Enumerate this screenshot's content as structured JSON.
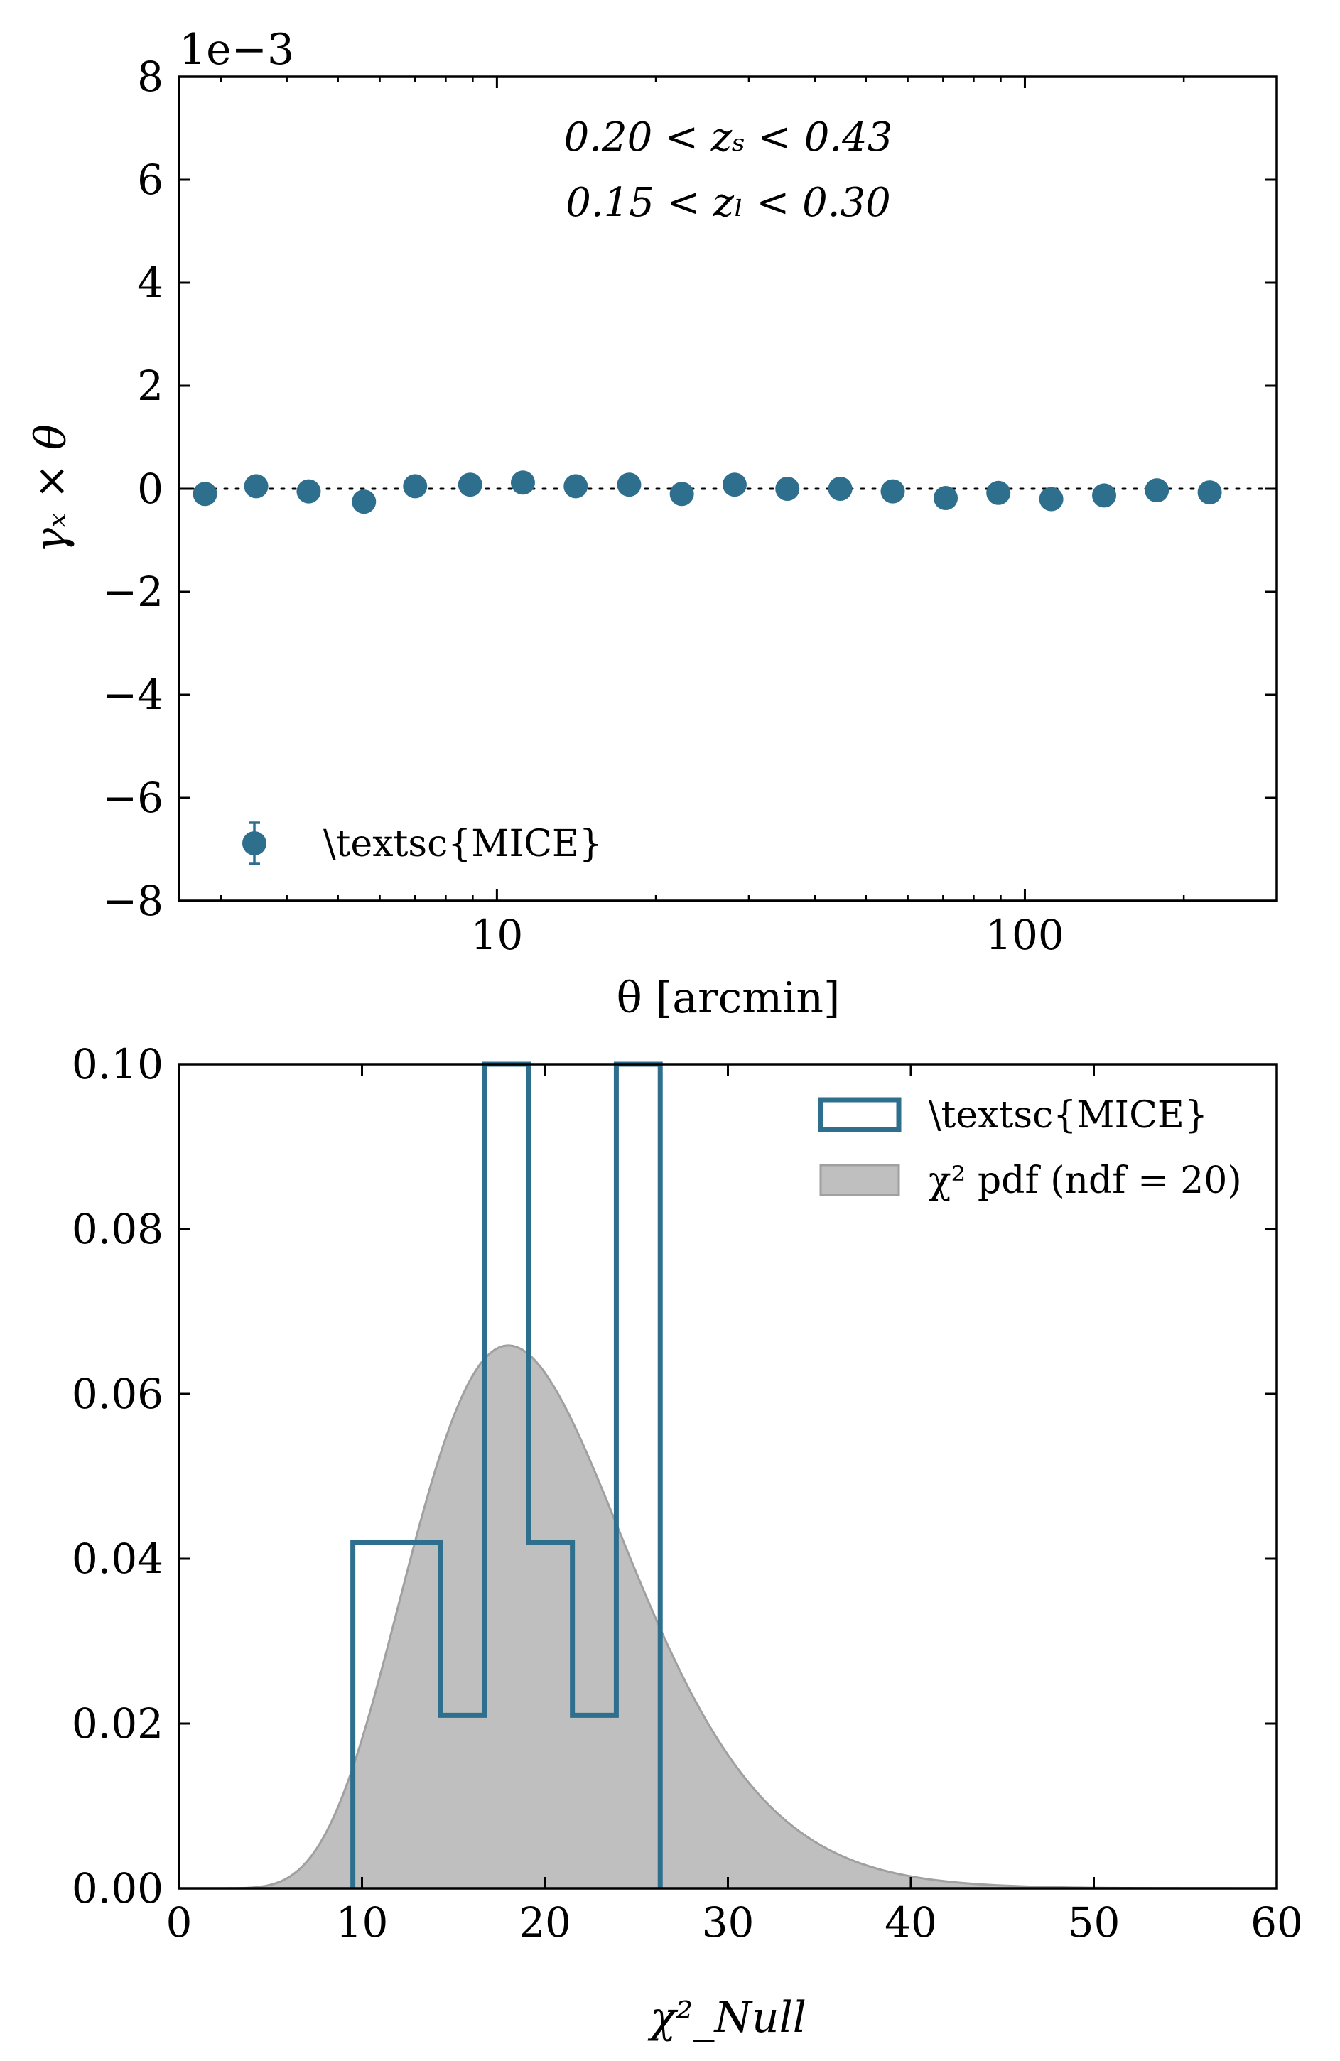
{
  "chart_data": [
    {
      "type": "scatter",
      "offset_label": "1e−3",
      "xlabel": "θ [arcmin]",
      "ylabel": "γₓ × θ",
      "xscale": "log",
      "xlim": [
        2.5,
        300
      ],
      "ylim": [
        -8,
        8
      ],
      "xticks": [
        10,
        100
      ],
      "xtick_labels": [
        "10",
        "100"
      ],
      "yticks": [
        8,
        6,
        4,
        2,
        0,
        -2,
        -4,
        -6,
        -8
      ],
      "ytick_labels": [
        "8",
        "6",
        "4",
        "2",
        "0",
        "−2",
        "−4",
        "−6",
        "−8"
      ],
      "annotations": [
        "0.20 < zₛ < 0.43",
        "0.15 < zₗ < 0.30"
      ],
      "legend": {
        "label": "\\textsc{MICE}",
        "placement": "lower-left"
      },
      "reference_line": {
        "y": 0,
        "style": "dotted"
      },
      "color": "#2e6f8e",
      "series": [
        {
          "name": "\\textsc{MICE}",
          "x": [
            2.8,
            3.5,
            4.4,
            5.6,
            7.0,
            8.9,
            11.2,
            14.1,
            17.8,
            22.4,
            28.2,
            35.5,
            44.7,
            56.2,
            70.8,
            89.1,
            112.2,
            141.3,
            177.8,
            223.9
          ],
          "y": [
            -0.1,
            0.05,
            -0.05,
            -0.25,
            0.05,
            0.08,
            0.12,
            0.05,
            0.08,
            -0.1,
            0.08,
            0.0,
            0.0,
            -0.05,
            -0.18,
            -0.08,
            -0.2,
            -0.13,
            -0.03,
            -0.07
          ]
        }
      ]
    },
    {
      "type": "histogram",
      "xlabel": "χ²_Null",
      "xlim": [
        0,
        60
      ],
      "ylim": [
        0,
        0.1
      ],
      "xticks": [
        0,
        10,
        20,
        30,
        40,
        50,
        60
      ],
      "xtick_labels": [
        "0",
        "10",
        "20",
        "30",
        "40",
        "50",
        "60"
      ],
      "yticks": [
        0.1,
        0.08,
        0.06,
        0.04,
        0.02,
        0.0
      ],
      "ytick_labels": [
        "0.10",
        "0.08",
        "0.06",
        "0.04",
        "0.02",
        "0.00"
      ],
      "legend": {
        "placement": "top-right"
      },
      "series": [
        {
          "name": "\\textsc{MICE}",
          "kind": "step-histogram",
          "color": "#2e6f8e",
          "bin_edges": [
            9.5,
            14.3,
            16.7,
            19.1,
            21.5,
            23.9,
            26.3
          ],
          "values": [
            0.042,
            0.021,
            0.1,
            0.042,
            0.021,
            0.1
          ]
        },
        {
          "name": "χ² pdf (ndf = 20)",
          "kind": "filled-pdf",
          "color": "#bfbfbf",
          "edge_color": "#a0a0a0",
          "dof": 20
        }
      ]
    }
  ]
}
